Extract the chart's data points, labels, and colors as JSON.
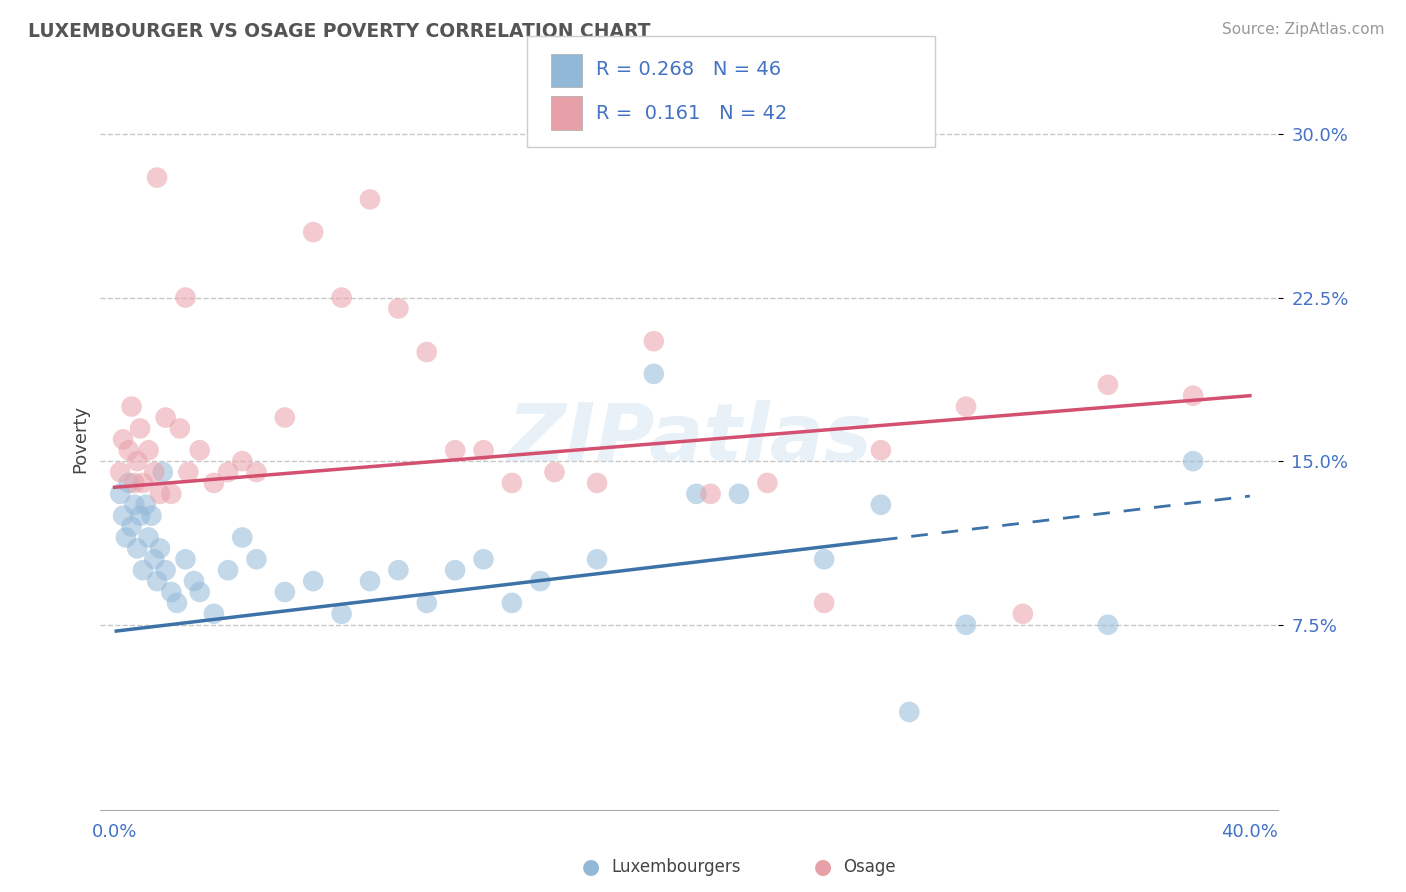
{
  "title": "LUXEMBOURGER VS OSAGE POVERTY CORRELATION CHART",
  "source": "Source: ZipAtlas.com",
  "ylabel": "Poverty",
  "xlim": [
    0.0,
    40.0
  ],
  "ylim": [
    0.0,
    32.0
  ],
  "yticks": [
    7.5,
    15.0,
    22.5,
    30.0
  ],
  "r_blue": 0.268,
  "n_blue": 46,
  "r_pink": 0.161,
  "n_pink": 42,
  "blue_color": "#92b8d8",
  "pink_color": "#e8a0a8",
  "blue_line_color": "#3d72a8",
  "pink_line_color": "#d45070",
  "text_color": "#4472c4",
  "background_color": "#ffffff",
  "grid_color": "#c8c8c8",
  "watermark": "ZIPatlas",
  "blue_intercept": 7.2,
  "blue_slope": 0.155,
  "blue_solid_end": 27.0,
  "pink_intercept": 13.8,
  "pink_slope": 0.105,
  "bx": [
    0.2,
    0.3,
    0.4,
    0.5,
    0.6,
    0.7,
    0.8,
    0.9,
    1.0,
    1.1,
    1.2,
    1.3,
    1.4,
    1.5,
    1.6,
    1.7,
    1.8,
    2.0,
    2.2,
    2.5,
    2.8,
    3.0,
    3.5,
    4.0,
    4.5,
    5.0,
    6.0,
    7.0,
    8.0,
    9.0,
    10.0,
    11.0,
    12.0,
    13.0,
    14.0,
    15.0,
    17.0,
    19.0,
    20.5,
    22.0,
    25.0,
    27.0,
    28.0,
    30.0,
    35.0,
    38.0
  ],
  "by": [
    13.5,
    12.5,
    11.5,
    14.0,
    12.0,
    13.0,
    11.0,
    12.5,
    10.0,
    13.0,
    11.5,
    12.5,
    10.5,
    9.5,
    11.0,
    14.5,
    10.0,
    9.0,
    8.5,
    10.5,
    9.5,
    9.0,
    8.0,
    10.0,
    11.5,
    10.5,
    9.0,
    9.5,
    8.0,
    9.5,
    10.0,
    8.5,
    10.0,
    10.5,
    8.5,
    9.5,
    10.5,
    19.0,
    13.5,
    13.5,
    10.5,
    13.0,
    3.5,
    7.5,
    7.5,
    15.0
  ],
  "px": [
    0.2,
    0.3,
    0.5,
    0.6,
    0.7,
    0.8,
    0.9,
    1.0,
    1.2,
    1.4,
    1.6,
    1.8,
    2.0,
    2.3,
    2.6,
    3.0,
    3.5,
    4.0,
    4.5,
    5.0,
    6.0,
    7.0,
    8.0,
    9.0,
    10.0,
    11.0,
    12.0,
    13.0,
    14.0,
    15.5,
    17.0,
    19.0,
    21.0,
    23.0,
    25.0,
    27.0,
    30.0,
    32.0,
    35.0,
    38.0,
    1.5,
    2.5
  ],
  "py": [
    14.5,
    16.0,
    15.5,
    17.5,
    14.0,
    15.0,
    16.5,
    14.0,
    15.5,
    14.5,
    13.5,
    17.0,
    13.5,
    16.5,
    14.5,
    15.5,
    14.0,
    14.5,
    15.0,
    14.5,
    17.0,
    25.5,
    22.5,
    27.0,
    22.0,
    20.0,
    15.5,
    15.5,
    14.0,
    14.5,
    14.0,
    20.5,
    13.5,
    14.0,
    8.5,
    15.5,
    17.5,
    8.0,
    18.5,
    18.0,
    28.0,
    22.5
  ]
}
